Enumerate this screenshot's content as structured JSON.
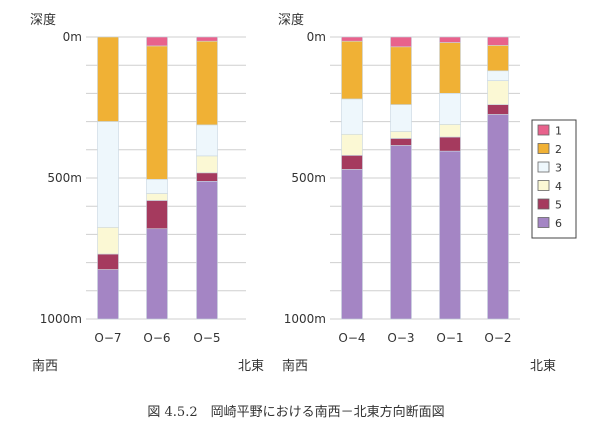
{
  "caption": "図 4.5.2　岡崎平野における南西－北東方向断面図",
  "chart_data": [
    {
      "type": "bar",
      "stacked": true,
      "ylabel": "深度",
      "y_unit": "m",
      "ylim": [
        0,
        1000
      ],
      "y_inverted": true,
      "yticks": [
        0,
        500,
        1000
      ],
      "ytick_labels": [
        "0m",
        "500m",
        "1000m"
      ],
      "grid": true,
      "categories": [
        "O−7",
        "O−6",
        "O−5"
      ],
      "direction_left": "南西",
      "direction_right": "北東",
      "series": [
        {
          "name": "1",
          "values": [
            0,
            32,
            15
          ]
        },
        {
          "name": "2",
          "values": [
            300,
            473,
            297
          ]
        },
        {
          "name": "3",
          "values": [
            375,
            50,
            110
          ]
        },
        {
          "name": "4",
          "values": [
            95,
            25,
            60
          ]
        },
        {
          "name": "5",
          "values": [
            55,
            100,
            30
          ]
        },
        {
          "name": "6",
          "values": [
            175,
            320,
            488
          ]
        }
      ]
    },
    {
      "type": "bar",
      "stacked": true,
      "ylabel": "深度",
      "y_unit": "m",
      "ylim": [
        0,
        1000
      ],
      "y_inverted": true,
      "yticks": [
        0,
        500,
        1000
      ],
      "ytick_labels": [
        "0m",
        "500m",
        "1000m"
      ],
      "grid": true,
      "categories": [
        "O−4",
        "O−3",
        "O−1",
        "O−2"
      ],
      "direction_left": "南西",
      "direction_right": "北東",
      "series": [
        {
          "name": "1",
          "values": [
            15,
            35,
            20,
            30
          ]
        },
        {
          "name": "2",
          "values": [
            205,
            205,
            180,
            90
          ]
        },
        {
          "name": "3",
          "values": [
            125,
            95,
            110,
            35
          ]
        },
        {
          "name": "4",
          "values": [
            75,
            25,
            45,
            85
          ]
        },
        {
          "name": "5",
          "values": [
            50,
            25,
            50,
            35
          ]
        },
        {
          "name": "6",
          "values": [
            530,
            615,
            595,
            725
          ]
        }
      ]
    }
  ],
  "legend": {
    "placement": "right",
    "items": [
      "1",
      "2",
      "3",
      "4",
      "5",
      "6"
    ],
    "colors": [
      "#e8628c",
      "#f0b135",
      "#eef7fc",
      "#fbf8d4",
      "#a53a5e",
      "#a485c4"
    ]
  }
}
